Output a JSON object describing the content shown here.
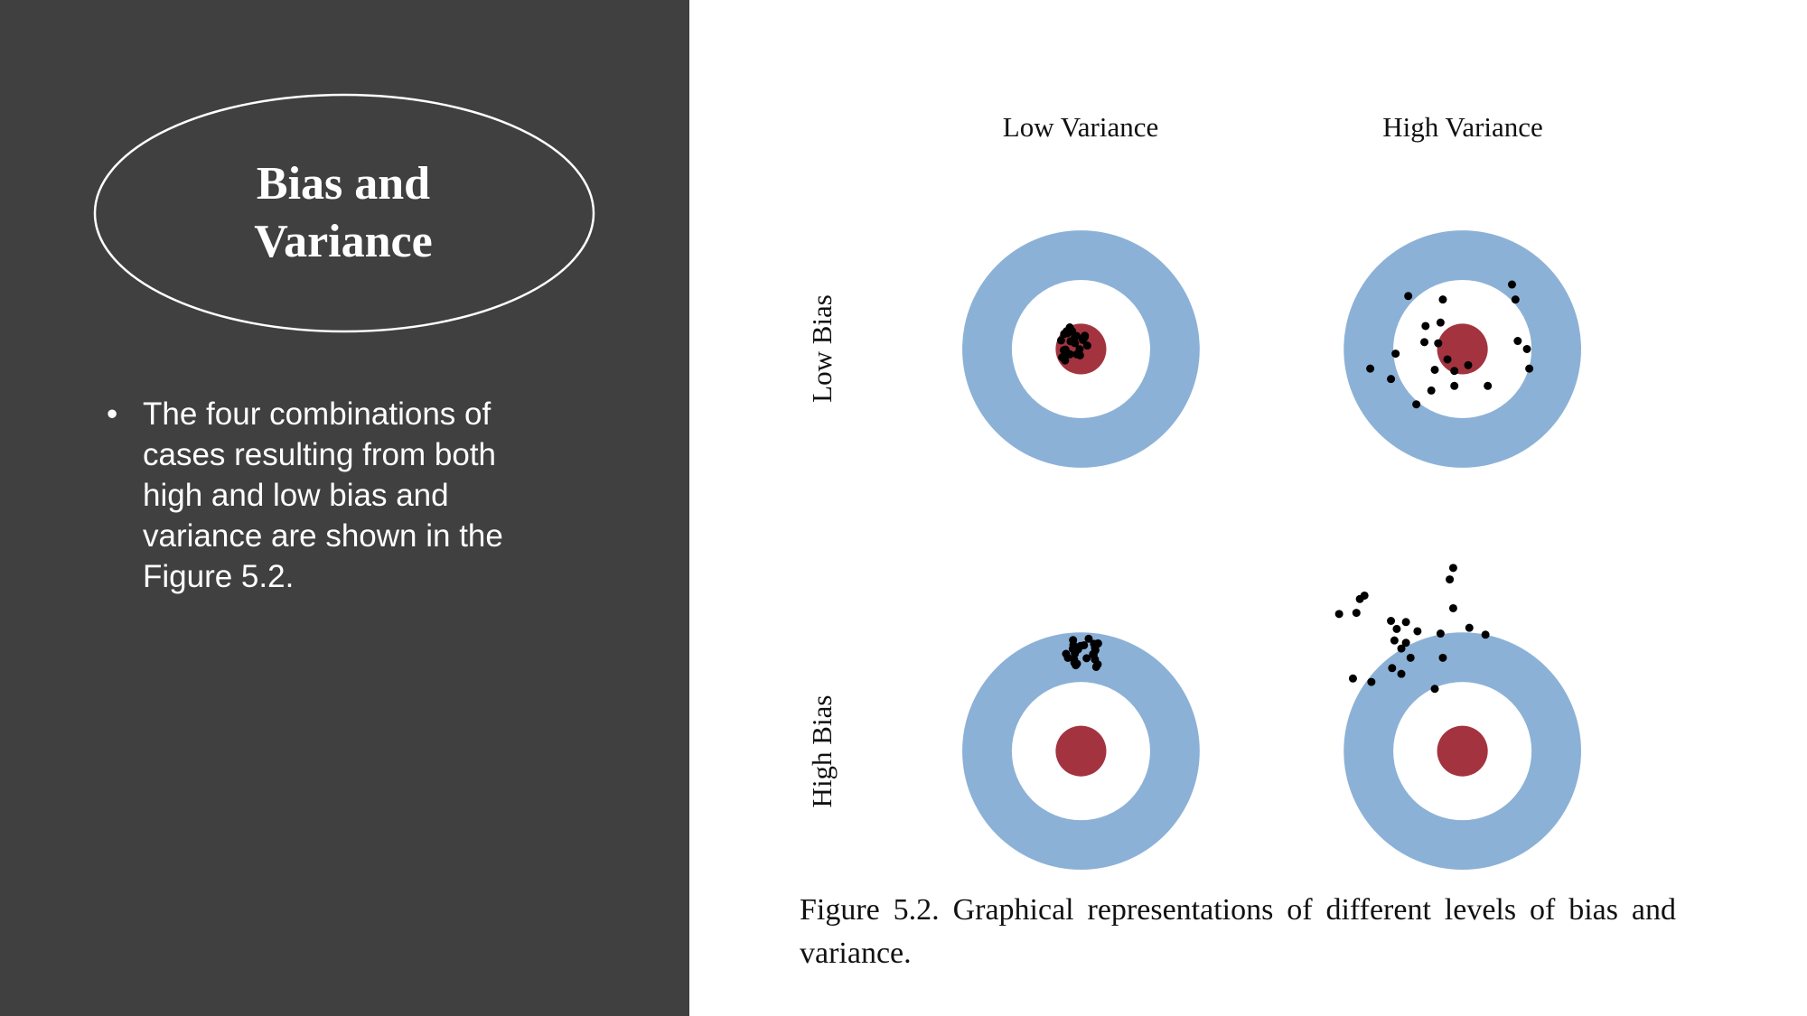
{
  "slide": {
    "title_line1": "Bias and",
    "title_line2": "Variance",
    "bullet": "The four combinations of cases resulting from both high and low bias and variance are shown in the Figure 5.2."
  },
  "figure": {
    "column_labels": [
      "Low Variance",
      "High Variance"
    ],
    "row_labels": [
      "Low Bias",
      "High Bias"
    ],
    "caption": "Figure 5.2. Graphical representations of different levels of bias and variance."
  }
}
